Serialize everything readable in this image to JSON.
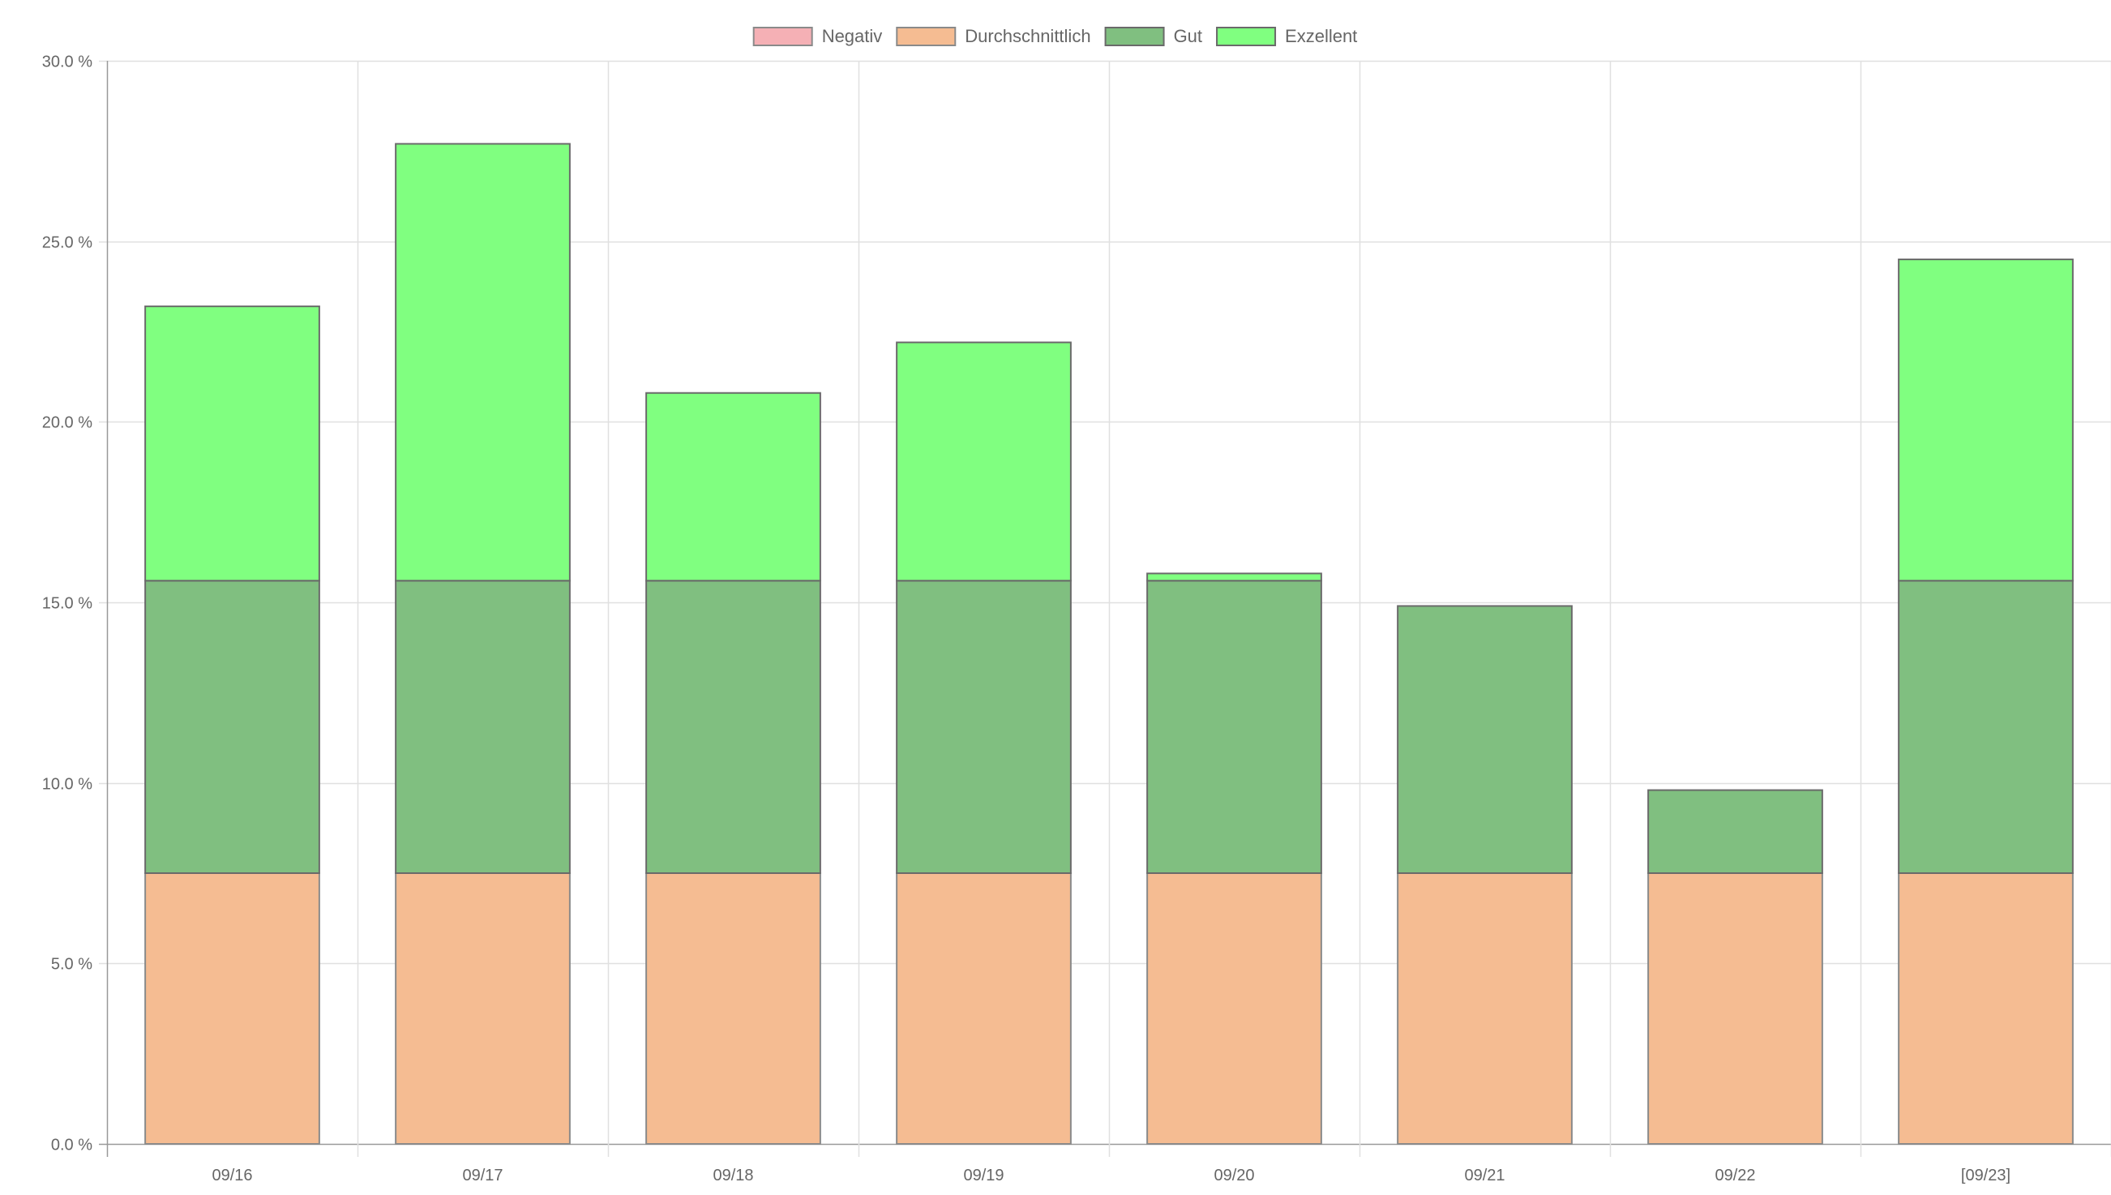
{
  "chart_data": {
    "type": "bar",
    "stacked": true,
    "categories": [
      "09/16",
      "09/17",
      "09/18",
      "09/19",
      "09/20",
      "09/21",
      "09/22",
      "[09/23]"
    ],
    "series": [
      {
        "name": "Negativ",
        "color": "#f5b0b5",
        "border_color": "#8a8a8a",
        "values": [
          0,
          0,
          0,
          0,
          0,
          0,
          0,
          0
        ]
      },
      {
        "name": "Durchschnittlich",
        "color": "#f5bc92",
        "border_color": "#8a8a8a",
        "values": [
          7.5,
          7.5,
          7.5,
          7.5,
          7.5,
          7.5,
          7.5,
          7.5
        ]
      },
      {
        "name": "Gut",
        "color": "#80bf80",
        "border_color": "#6a6a6a",
        "values": [
          8.1,
          8.1,
          8.1,
          8.1,
          8.1,
          7.4,
          2.3,
          8.1
        ]
      },
      {
        "name": "Exzellent",
        "color": "#80ff80",
        "border_color": "#6a6a6a",
        "values": [
          7.6,
          12.1,
          5.2,
          6.6,
          0.2,
          0,
          0,
          8.9
        ]
      }
    ],
    "ylim": [
      0,
      30
    ],
    "yticks": [
      "0.0 %",
      "5.0 %",
      "10.0 %",
      "15.0 %",
      "20.0 %",
      "25.0 %",
      "30.0 %"
    ],
    "grid": true,
    "legend_position": "top-center",
    "xlabel": "",
    "ylabel": "",
    "title": ""
  }
}
